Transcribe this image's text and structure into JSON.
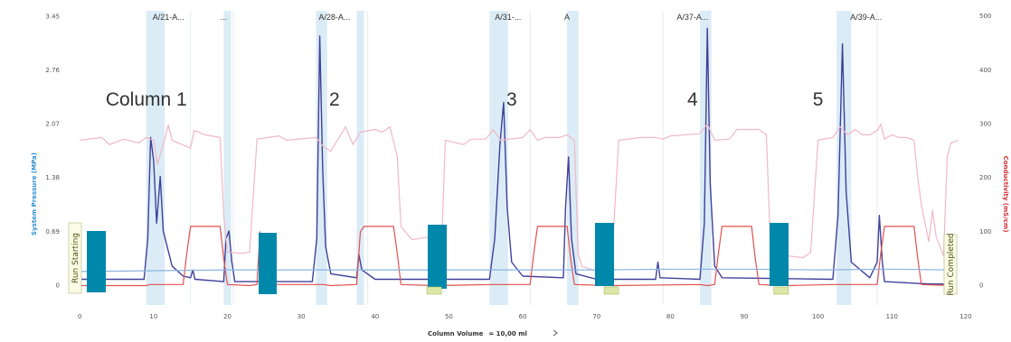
{
  "chart_data": {
    "type": "line",
    "x_axis": {
      "label": "Column Volume",
      "extra": "= 10,00 ml",
      "ticks": [
        0,
        10,
        20,
        30,
        40,
        50,
        60,
        70,
        80,
        90,
        100,
        110,
        120
      ],
      "range": [
        -1.5,
        120.5
      ]
    },
    "y_left": {
      "label": "System Pressure (MPa)",
      "ticks": [
        "0",
        "0.69",
        "1.38",
        "2.07",
        "2.76",
        "3.45"
      ],
      "range": [
        -0.25,
        3.57
      ]
    },
    "y_right": {
      "label": "Conductivity (mS/cm)",
      "ticks": [
        0,
        100,
        200,
        300,
        400,
        500
      ],
      "range": [
        -36,
        517
      ]
    },
    "fraction_labels": [
      {
        "text": "A/21-A...",
        "x": 12
      },
      {
        "text": "...",
        "x": 19.5
      },
      {
        "text": "A/28-A...",
        "x": 34.5
      },
      {
        "text": "A/31-...",
        "x": 58
      },
      {
        "text": "A",
        "x": 66
      },
      {
        "text": "A/37-A...",
        "x": 83
      },
      {
        "text": "A/39-A...",
        "x": 106.5
      }
    ],
    "fraction_bands": [
      [
        9,
        11.5
      ],
      [
        19.5,
        20.5
      ],
      [
        32,
        33.5
      ],
      [
        37.5,
        38.5
      ],
      [
        55.5,
        58
      ],
      [
        66,
        67.5
      ],
      [
        84,
        85.5
      ],
      [
        102.5,
        104.5
      ]
    ],
    "column_labels": [
      {
        "text": "Column 1",
        "x": 3.5
      },
      {
        "text": "2",
        "x": 34.5
      },
      {
        "text": "3",
        "x": 58.5
      },
      {
        "text": "4",
        "x": 83
      },
      {
        "text": "5",
        "x": 100
      }
    ],
    "status_labels": [
      "Run Starting",
      "Run Completed"
    ],
    "series": [
      {
        "color": "#40409a",
        "axis": "left",
        "points": [
          [
            0,
            0.08
          ],
          [
            8.7,
            0.08
          ],
          [
            9.2,
            0.6
          ],
          [
            9.6,
            1.9
          ],
          [
            10.0,
            1.6
          ],
          [
            10.4,
            0.8
          ],
          [
            10.9,
            1.4
          ],
          [
            11.3,
            0.7
          ],
          [
            12.5,
            0.25
          ],
          [
            14,
            0.12
          ],
          [
            15,
            0.1
          ],
          [
            15.3,
            0.2
          ],
          [
            15.6,
            0.08
          ],
          [
            19.5,
            0.05
          ],
          [
            19.8,
            0.6
          ],
          [
            20.2,
            0.7
          ],
          [
            20.6,
            0.3
          ],
          [
            21,
            0.05
          ],
          [
            31.5,
            0.05
          ],
          [
            32.1,
            0.6
          ],
          [
            32.5,
            3.2
          ],
          [
            32.9,
            1.5
          ],
          [
            33.3,
            0.5
          ],
          [
            34,
            0.15
          ],
          [
            37.5,
            0.1
          ],
          [
            37.8,
            0.4
          ],
          [
            38.2,
            0.2
          ],
          [
            40,
            0.08
          ],
          [
            55.5,
            0.08
          ],
          [
            56.2,
            0.6
          ],
          [
            56.9,
            1.8
          ],
          [
            57.4,
            2.35
          ],
          [
            57.9,
            1.0
          ],
          [
            58.5,
            0.3
          ],
          [
            60,
            0.12
          ],
          [
            65.5,
            0.1
          ],
          [
            65.8,
            1.0
          ],
          [
            66.2,
            1.65
          ],
          [
            66.6,
            0.6
          ],
          [
            67.2,
            0.15
          ],
          [
            70,
            0.08
          ],
          [
            78,
            0.08
          ],
          [
            78.3,
            0.3
          ],
          [
            78.6,
            0.1
          ],
          [
            84,
            0.08
          ],
          [
            84.6,
            0.8
          ],
          [
            85.0,
            3.3
          ],
          [
            85.4,
            1.3
          ],
          [
            86,
            0.25
          ],
          [
            87,
            0.1
          ],
          [
            102,
            0.08
          ],
          [
            102.7,
            0.9
          ],
          [
            103.3,
            3.1
          ],
          [
            103.8,
            1.2
          ],
          [
            104.5,
            0.3
          ],
          [
            107,
            0.1
          ],
          [
            108,
            0.3
          ],
          [
            108.3,
            0.9
          ],
          [
            108.7,
            0.3
          ],
          [
            109,
            0.05
          ],
          [
            115,
            0.02
          ],
          [
            118,
            0.02
          ]
        ]
      },
      {
        "color": "#e05050",
        "axis": "right",
        "points": [
          [
            0,
            0
          ],
          [
            9,
            0
          ],
          [
            9.5,
            2
          ],
          [
            14,
            2
          ],
          [
            14.5,
            60
          ],
          [
            15,
            110
          ],
          [
            19,
            110
          ],
          [
            19.5,
            50
          ],
          [
            20,
            2
          ],
          [
            23,
            0
          ],
          [
            24,
            2
          ],
          [
            24.4,
            100
          ],
          [
            24.8,
            20
          ],
          [
            25.3,
            2
          ],
          [
            33,
            2
          ],
          [
            34,
            0
          ],
          [
            37.5,
            2
          ],
          [
            38,
            100
          ],
          [
            38.5,
            110
          ],
          [
            42.5,
            110
          ],
          [
            43,
            60
          ],
          [
            43.5,
            2
          ],
          [
            48,
            0
          ],
          [
            56,
            2
          ],
          [
            56.5,
            2
          ],
          [
            61,
            2
          ],
          [
            61.5,
            60
          ],
          [
            62,
            110
          ],
          [
            66,
            110
          ],
          [
            66.5,
            50
          ],
          [
            67,
            2
          ],
          [
            72,
            0
          ],
          [
            84,
            2
          ],
          [
            85,
            0
          ],
          [
            86,
            2
          ],
          [
            86.5,
            60
          ],
          [
            87,
            110
          ],
          [
            91,
            110
          ],
          [
            91.5,
            50
          ],
          [
            92,
            2
          ],
          [
            96,
            0
          ],
          [
            102,
            2
          ],
          [
            104,
            2
          ],
          [
            108,
            2
          ],
          [
            108.5,
            60
          ],
          [
            109,
            110
          ],
          [
            113,
            110
          ],
          [
            113.5,
            50
          ],
          [
            114,
            2
          ],
          [
            118,
            0
          ]
        ]
      },
      {
        "color": "#f0b8c6",
        "axis": "right",
        "points": [
          [
            0,
            270
          ],
          [
            3,
            275
          ],
          [
            4,
            262
          ],
          [
            6,
            272
          ],
          [
            8,
            265
          ],
          [
            9,
            275
          ],
          [
            10,
            270
          ],
          [
            10.5,
            225
          ],
          [
            11,
            248
          ],
          [
            11.5,
            272
          ],
          [
            12,
            298
          ],
          [
            12.5,
            270
          ],
          [
            15,
            255
          ],
          [
            15.5,
            288
          ],
          [
            17,
            280
          ],
          [
            19,
            275
          ],
          [
            19.5,
            130
          ],
          [
            20,
            62
          ],
          [
            22,
            60
          ],
          [
            23,
            62
          ],
          [
            24,
            272
          ],
          [
            27,
            278
          ],
          [
            28,
            270
          ],
          [
            32,
            275
          ],
          [
            33,
            258
          ],
          [
            34,
            250
          ],
          [
            35,
            272
          ],
          [
            36,
            295
          ],
          [
            37,
            262
          ],
          [
            38,
            285
          ],
          [
            40,
            290
          ],
          [
            41,
            285
          ],
          [
            42,
            295
          ],
          [
            43,
            240
          ],
          [
            43.5,
            110
          ],
          [
            45,
            85
          ],
          [
            47,
            90
          ],
          [
            48,
            80
          ],
          [
            49,
            72
          ],
          [
            49.5,
            270
          ],
          [
            52,
            262
          ],
          [
            53,
            272
          ],
          [
            55,
            272
          ],
          [
            56,
            290
          ],
          [
            57,
            270
          ],
          [
            60,
            275
          ],
          [
            61,
            290
          ],
          [
            62,
            270
          ],
          [
            63,
            275
          ],
          [
            65,
            275
          ],
          [
            66,
            280
          ],
          [
            67,
            270
          ],
          [
            67.5,
            60
          ],
          [
            68,
            35
          ],
          [
            70,
            28
          ],
          [
            72,
            32
          ],
          [
            73,
            270
          ],
          [
            76,
            275
          ],
          [
            78,
            275
          ],
          [
            79,
            272
          ],
          [
            80,
            278
          ],
          [
            84,
            282
          ],
          [
            85,
            300
          ],
          [
            86,
            270
          ],
          [
            88,
            272
          ],
          [
            89,
            290
          ],
          [
            92,
            290
          ],
          [
            93,
            280
          ],
          [
            93.5,
            90
          ],
          [
            94,
            62
          ],
          [
            96,
            55
          ],
          [
            98,
            52
          ],
          [
            99,
            62
          ],
          [
            100,
            270
          ],
          [
            102,
            275
          ],
          [
            103,
            295
          ],
          [
            104,
            280
          ],
          [
            105,
            290
          ],
          [
            106,
            280
          ],
          [
            107,
            280
          ],
          [
            108,
            288
          ],
          [
            108.5,
            300
          ],
          [
            109,
            272
          ],
          [
            110,
            280
          ],
          [
            111,
            275
          ],
          [
            112,
            275
          ],
          [
            113,
            270
          ],
          [
            113.5,
            200
          ],
          [
            114,
            150
          ],
          [
            115,
            82
          ],
          [
            115.5,
            140
          ],
          [
            116,
            90
          ],
          [
            117,
            55
          ],
          [
            117.5,
            240
          ],
          [
            118,
            265
          ],
          [
            119,
            270
          ]
        ]
      },
      {
        "color": "#8ab4e0",
        "axis": "left",
        "points": [
          [
            0,
            0.18
          ],
          [
            10,
            0.19
          ],
          [
            20,
            0.2
          ],
          [
            40,
            0.2
          ],
          [
            50,
            0.2
          ],
          [
            60,
            0.2
          ],
          [
            70,
            0.2
          ],
          [
            80,
            0.21
          ],
          [
            90,
            0.21
          ],
          [
            100,
            0.2
          ],
          [
            110,
            0.21
          ],
          [
            118,
            0.2
          ]
        ]
      }
    ]
  }
}
